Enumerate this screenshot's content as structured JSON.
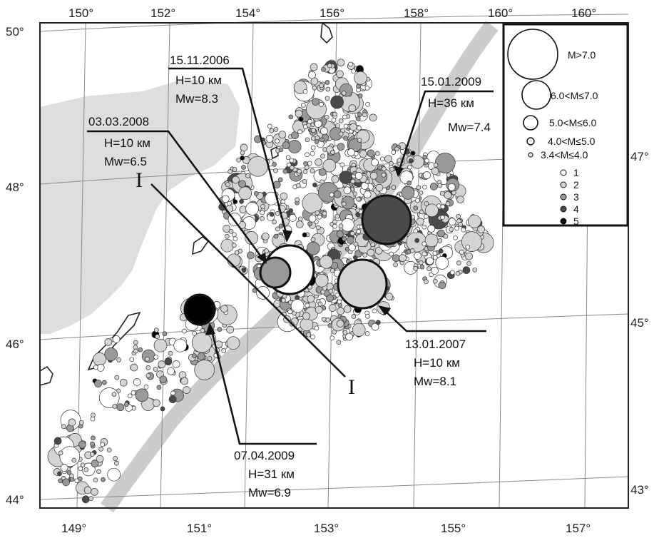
{
  "map": {
    "top_lon_labels": [
      "150°",
      "152°",
      "154°",
      "156°",
      "158°",
      "160°"
    ],
    "bottom_lon_labels": [
      "149°",
      "151°",
      "153°",
      "155°",
      "157°"
    ],
    "left_lat_labels": [
      "50°",
      "48°",
      "46°",
      "44°"
    ],
    "right_lat_labels": [
      "47°",
      "45°",
      "43°"
    ],
    "profile_label_start": "I",
    "profile_label_end": "I"
  },
  "events": [
    {
      "date": "15.11.2006",
      "depth": "H=10 км",
      "mw": "Mw=8.3"
    },
    {
      "date": "03.03.2008",
      "depth": "H=10 км",
      "mw": "Mw=6.5"
    },
    {
      "date": "15.01.2009",
      "depth": "H=36 км",
      "mw": "Mw=7.4"
    },
    {
      "date": "13.01.2007",
      "depth": "H=10 км",
      "mw": "Mw=8.1"
    },
    {
      "date": "07.04.2009",
      "depth": "H=31 км",
      "mw": "Mw=6.9"
    }
  ],
  "legend": {
    "magnitude_classes": [
      "M>7.0",
      "6.0<M≤7.0",
      "5.0<M≤6.0",
      "4.0<M≤5.0",
      "3.4<M≤4.0"
    ],
    "depth_classes": [
      "1",
      "2",
      "3",
      "4",
      "5"
    ],
    "depth_class_colors": [
      "#ffffff",
      "#d4d4d4",
      "#999999",
      "#4a4a4a",
      "#000000"
    ]
  },
  "colors": {
    "land": "#dedede",
    "trench": "#cccccc",
    "frame": "#222222"
  }
}
